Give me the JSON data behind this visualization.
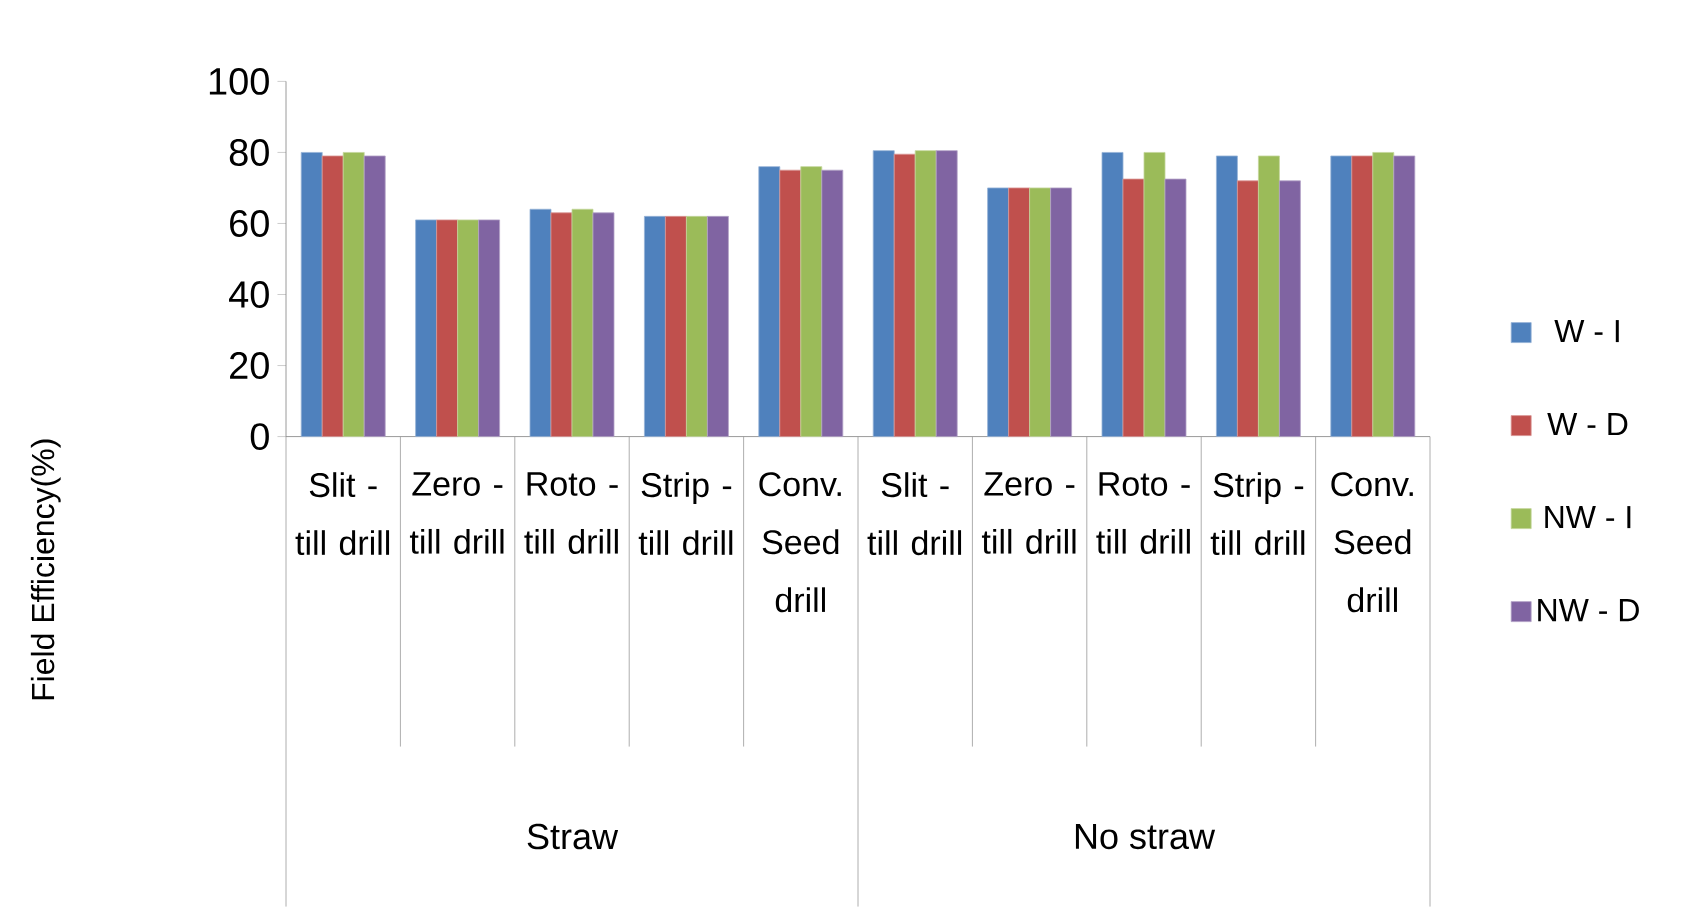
{
  "chart_data": {
    "type": "bar",
    "ylabel": "Field Efficiency(%)",
    "categories": [
      "Slit - till drill",
      "Zero - till drill",
      "Roto - till drill",
      "Strip - till drill",
      "Conv. Seed drill",
      "Slit - till drill",
      "Zero - till drill",
      "Roto - till drill",
      "Strip - till drill",
      "Conv. Seed drill"
    ],
    "series": [
      {
        "name": "W - I",
        "color": "#4f81bd",
        "values": [
          80,
          61,
          64,
          62,
          76,
          80.5,
          70,
          80,
          79,
          79
        ]
      },
      {
        "name": "W - D",
        "color": "#c0504d",
        "values": [
          79,
          61,
          63,
          62,
          75,
          79.5,
          70,
          72.5,
          72,
          79
        ]
      },
      {
        "name": "NW - I",
        "color": "#9bbb59",
        "values": [
          80,
          61,
          64,
          62,
          76,
          80.5,
          70,
          80,
          79,
          80
        ]
      },
      {
        "name": "NW - D",
        "color": "#8064a2",
        "values": [
          79,
          61,
          63,
          62,
          75,
          80.5,
          70,
          72.5,
          72,
          79
        ]
      }
    ],
    "annotations": [
      "Straw",
      "No straw"
    ],
    "ylim": [
      0,
      100
    ],
    "yticks": [
      0,
      20,
      40,
      60,
      80,
      100
    ],
    "legend": "right"
  }
}
